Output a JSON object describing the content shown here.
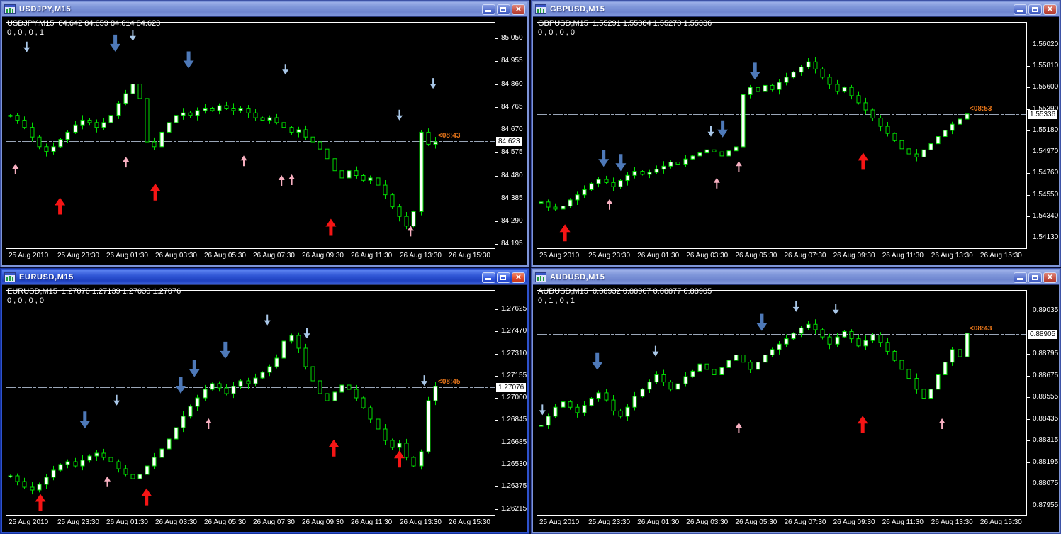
{
  "time_axis": [
    "25 Aug 2010",
    "25 Aug 23:30",
    "26 Aug 01:30",
    "26 Aug 03:30",
    "26 Aug 05:30",
    "26 Aug 07:30",
    "26 Aug 09:30",
    "26 Aug 11:30",
    "26 Aug 13:30",
    "26 Aug 15:30"
  ],
  "icons": {
    "window_icon": "candlestick-chart-window",
    "minimize": "minimize-bar",
    "maximize": "maximize-square",
    "close": "x-cross"
  },
  "colors": {
    "candle_green": "#00dd00",
    "bull_fill": "#ffffff",
    "bear_fill": "#000000",
    "big_down_arrow": "#4e79b8",
    "small_down_arrow": "#a9c7e8",
    "big_up_arrow": "#f51515",
    "small_up_arrow": "#f7afc0",
    "price_line": "#9aa6b8",
    "frame_white": "#ffffff",
    "orange_label": "#e8761a"
  },
  "windows": [
    {
      "id": "usdjpy",
      "active": false,
      "title": "USDJPY,M15",
      "header_line1": "USDJPY,M15  84.642 84.659 84.614 84.623",
      "header_line2": "0 , 0 , 0 , 1",
      "current_price": "84.623",
      "current_time_label": "<08:43",
      "axis_ticks": [
        "85.050",
        "84.955",
        "84.860",
        "84.765",
        "84.670",
        "84.575",
        "84.480",
        "84.385",
        "84.290",
        "84.195"
      ],
      "price_top": 85.118,
      "price_bottom": 84.178,
      "closes": [
        84.73,
        84.71,
        84.68,
        84.64,
        84.6,
        84.58,
        84.6,
        84.63,
        84.66,
        84.69,
        84.71,
        84.7,
        84.68,
        84.7,
        84.73,
        84.78,
        84.82,
        84.86,
        84.8,
        84.62,
        84.6,
        84.66,
        84.7,
        84.73,
        84.74,
        84.73,
        84.75,
        84.76,
        84.75,
        84.77,
        84.76,
        84.75,
        84.76,
        84.74,
        84.72,
        84.71,
        84.72,
        84.7,
        84.68,
        84.66,
        84.67,
        84.64,
        84.62,
        84.59,
        84.55,
        84.5,
        84.47,
        84.5,
        84.48,
        84.46,
        84.47,
        84.44,
        84.4,
        84.35,
        84.31,
        84.27,
        84.33,
        84.66,
        84.61,
        84.62
      ],
      "arrows": [
        {
          "fx": 0.043,
          "fy": 0.087,
          "type": "small-down"
        },
        {
          "fx": 0.224,
          "fy": 0.056,
          "type": "big-down"
        },
        {
          "fx": 0.26,
          "fy": 0.037,
          "type": "small-down"
        },
        {
          "fx": 0.374,
          "fy": 0.13,
          "type": "big-down"
        },
        {
          "fx": 0.572,
          "fy": 0.186,
          "type": "small-down"
        },
        {
          "fx": 0.805,
          "fy": 0.388,
          "type": "small-down"
        },
        {
          "fx": 0.874,
          "fy": 0.248,
          "type": "small-down"
        },
        {
          "fx": 0.02,
          "fy": 0.627,
          "type": "small-up"
        },
        {
          "fx": 0.111,
          "fy": 0.776,
          "type": "big-up"
        },
        {
          "fx": 0.246,
          "fy": 0.596,
          "type": "small-up"
        },
        {
          "fx": 0.306,
          "fy": 0.714,
          "type": "big-up"
        },
        {
          "fx": 0.487,
          "fy": 0.59,
          "type": "small-up"
        },
        {
          "fx": 0.564,
          "fy": 0.677,
          "type": "small-up"
        },
        {
          "fx": 0.585,
          "fy": 0.674,
          "type": "small-up"
        },
        {
          "fx": 0.665,
          "fy": 0.87,
          "type": "big-up"
        },
        {
          "fx": 0.828,
          "fy": 0.901,
          "type": "small-up"
        }
      ]
    },
    {
      "id": "gbpusd",
      "active": false,
      "title": "GBPUSD,M15",
      "header_line1": "GBPUSD,M15  1.55291 1.55384 1.55270 1.55336",
      "header_line2": "0 , 0 , 0 , 0",
      "current_price": "1.55336",
      "current_time_label": "<08:53",
      "axis_ticks": [
        "1.56020",
        "1.55810",
        "1.55600",
        "1.55390",
        "1.55180",
        "1.54970",
        "1.54760",
        "1.54550",
        "1.54340",
        "1.54130"
      ],
      "price_top": 1.5624,
      "price_bottom": 1.54028,
      "closes": [
        1.5448,
        1.5443,
        1.5441,
        1.5444,
        1.545,
        1.5455,
        1.546,
        1.5466,
        1.547,
        1.5467,
        1.5463,
        1.5469,
        1.5474,
        1.5478,
        1.5475,
        1.5477,
        1.548,
        1.5483,
        1.5487,
        1.5485,
        1.549,
        1.5493,
        1.5496,
        1.5499,
        1.5497,
        1.5493,
        1.5498,
        1.5502,
        1.5553,
        1.556,
        1.5556,
        1.5562,
        1.5558,
        1.5565,
        1.557,
        1.5575,
        1.558,
        1.5585,
        1.5578,
        1.557,
        1.5563,
        1.5556,
        1.556,
        1.5552,
        1.5545,
        1.5538,
        1.553,
        1.5522,
        1.5515,
        1.5508,
        1.55,
        1.5495,
        1.5492,
        1.5499,
        1.5505,
        1.5512,
        1.5518,
        1.5524,
        1.5529,
        1.5534
      ],
      "arrows": [
        {
          "fx": 0.446,
          "fy": 0.18,
          "type": "big-down"
        },
        {
          "fx": 0.356,
          "fy": 0.46,
          "type": "small-down"
        },
        {
          "fx": 0.38,
          "fy": 0.435,
          "type": "big-down"
        },
        {
          "fx": 0.137,
          "fy": 0.565,
          "type": "big-down"
        },
        {
          "fx": 0.172,
          "fy": 0.584,
          "type": "big-down"
        },
        {
          "fx": 0.413,
          "fy": 0.615,
          "type": "small-up"
        },
        {
          "fx": 0.368,
          "fy": 0.689,
          "type": "small-up"
        },
        {
          "fx": 0.149,
          "fy": 0.783,
          "type": "small-up"
        },
        {
          "fx": 0.667,
          "fy": 0.578,
          "type": "big-up"
        },
        {
          "fx": 0.058,
          "fy": 0.894,
          "type": "big-up"
        }
      ]
    },
    {
      "id": "eurusd",
      "active": true,
      "title": "EURUSD,M15",
      "header_line1": "EURUSD,M15  1.27076 1.27139 1.27030 1.27076",
      "header_line2": "0 , 0 , 0 , 0",
      "current_price": "1.27076",
      "current_time_label": "<08:45",
      "axis_ticks": [
        "1.27625",
        "1.27470",
        "1.27310",
        "1.27155",
        "1.27000",
        "1.26845",
        "1.26685",
        "1.26530",
        "1.26375",
        "1.26215"
      ],
      "price_top": 1.2776,
      "price_bottom": 1.26175,
      "closes": [
        1.2645,
        1.2641,
        1.2637,
        1.2635,
        1.2639,
        1.2644,
        1.2649,
        1.2653,
        1.2655,
        1.2652,
        1.2656,
        1.2659,
        1.2661,
        1.2658,
        1.2655,
        1.265,
        1.2646,
        1.2643,
        1.2646,
        1.2652,
        1.2658,
        1.2664,
        1.2671,
        1.2679,
        1.2687,
        1.2694,
        1.27,
        1.2706,
        1.271,
        1.2707,
        1.2703,
        1.2708,
        1.2712,
        1.271,
        1.2714,
        1.2718,
        1.2722,
        1.2728,
        1.274,
        1.2744,
        1.2735,
        1.2722,
        1.2712,
        1.2703,
        1.2698,
        1.2704,
        1.2709,
        1.2706,
        1.27,
        1.2693,
        1.2685,
        1.2678,
        1.267,
        1.2665,
        1.2668,
        1.2658,
        1.2652,
        1.2662,
        1.2698,
        1.2708
      ],
      "arrows": [
        {
          "fx": 0.535,
          "fy": 0.109,
          "type": "small-down"
        },
        {
          "fx": 0.616,
          "fy": 0.168,
          "type": "small-down"
        },
        {
          "fx": 0.449,
          "fy": 0.23,
          "type": "big-down"
        },
        {
          "fx": 0.386,
          "fy": 0.311,
          "type": "big-down"
        },
        {
          "fx": 0.358,
          "fy": 0.385,
          "type": "big-down"
        },
        {
          "fx": 0.856,
          "fy": 0.379,
          "type": "small-down"
        },
        {
          "fx": 0.227,
          "fy": 0.466,
          "type": "small-down"
        },
        {
          "fx": 0.162,
          "fy": 0.54,
          "type": "big-down"
        },
        {
          "fx": 0.415,
          "fy": 0.571,
          "type": "small-up"
        },
        {
          "fx": 0.671,
          "fy": 0.665,
          "type": "big-up"
        },
        {
          "fx": 0.805,
          "fy": 0.714,
          "type": "big-up"
        },
        {
          "fx": 0.208,
          "fy": 0.829,
          "type": "small-up"
        },
        {
          "fx": 0.288,
          "fy": 0.882,
          "type": "big-up"
        },
        {
          "fx": 0.071,
          "fy": 0.907,
          "type": "big-up"
        }
      ]
    },
    {
      "id": "audusd",
      "active": false,
      "title": "AUDUSD,M15",
      "header_line1": "AUDUSD,M15  0.88932 0.88967 0.88877 0.88905",
      "header_line2": "0 , 1 , 0 , 1",
      "current_price": "0.88905",
      "current_time_label": "<08:43",
      "axis_ticks": [
        "0.89035",
        "0.88795",
        "0.88675",
        "0.88555",
        "0.88435",
        "0.88315",
        "0.88195",
        "0.88075",
        "0.87955"
      ],
      "price_top": 0.8915,
      "price_bottom": 0.87903,
      "closes": [
        0.884,
        0.8845,
        0.885,
        0.8853,
        0.885,
        0.8847,
        0.8851,
        0.8855,
        0.8858,
        0.8854,
        0.8848,
        0.8845,
        0.885,
        0.8856,
        0.886,
        0.8864,
        0.8868,
        0.8864,
        0.886,
        0.8863,
        0.8867,
        0.887,
        0.8874,
        0.8871,
        0.8868,
        0.8872,
        0.8876,
        0.8879,
        0.8875,
        0.8871,
        0.8875,
        0.8879,
        0.8882,
        0.8885,
        0.8888,
        0.8891,
        0.8894,
        0.8896,
        0.8893,
        0.8889,
        0.8885,
        0.8889,
        0.8892,
        0.8888,
        0.8884,
        0.8887,
        0.889,
        0.8886,
        0.8881,
        0.8876,
        0.8871,
        0.8866,
        0.886,
        0.8855,
        0.886,
        0.8868,
        0.8875,
        0.8882,
        0.8878,
        0.8891
      ],
      "arrows": [
        {
          "fx": 0.53,
          "fy": 0.05,
          "type": "small-down"
        },
        {
          "fx": 0.611,
          "fy": 0.062,
          "type": "small-down"
        },
        {
          "fx": 0.46,
          "fy": 0.106,
          "type": "big-down"
        },
        {
          "fx": 0.243,
          "fy": 0.248,
          "type": "small-down"
        },
        {
          "fx": 0.124,
          "fy": 0.28,
          "type": "big-down"
        },
        {
          "fx": 0.012,
          "fy": 0.509,
          "type": "small-down"
        },
        {
          "fx": 0.413,
          "fy": 0.59,
          "type": "small-up"
        },
        {
          "fx": 0.666,
          "fy": 0.559,
          "type": "big-up"
        },
        {
          "fx": 0.828,
          "fy": 0.571,
          "type": "small-up"
        }
      ]
    }
  ]
}
